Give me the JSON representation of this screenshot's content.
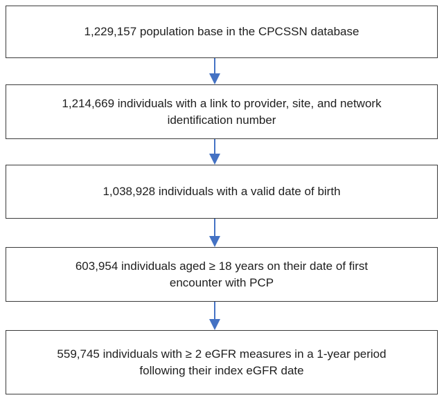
{
  "nodes": [
    {
      "lines": [
        "1,229,157 population base in the CPCSSN database"
      ]
    },
    {
      "lines": [
        "1,214,669 individuals with a link to provider, site,  and network",
        "identification number"
      ]
    },
    {
      "lines": [
        "1,038,928 individuals with a valid date of birth"
      ]
    },
    {
      "lines": [
        "603,954 individuals aged ≥ 18 years on their date of first",
        "encounter with PCP"
      ]
    },
    {
      "lines": [
        "559,745 individuals with ≥ 2 eGFR measures in a 1-year period",
        "following their index eGFR date"
      ]
    }
  ]
}
